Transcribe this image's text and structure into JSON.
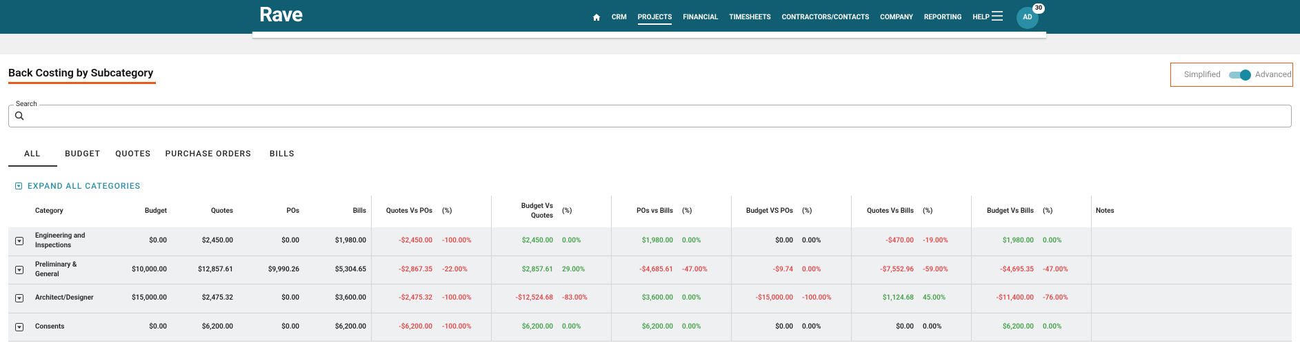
{
  "nav": {
    "brand": "Rave",
    "items": [
      "CRM",
      "PROJECTS",
      "FINANCIAL",
      "TIMESHEETS",
      "CONTRACTORS/CONTACTS",
      "COMPANY",
      "REPORTING",
      "HELP"
    ],
    "avatar": "AD",
    "badge": "30"
  },
  "page": {
    "title": "Back Costing by Subcategory",
    "toggle": {
      "left": "Simplified",
      "right": "Advanced"
    },
    "search_label": "Search",
    "tabs": [
      "ALL",
      "BUDGET",
      "QUOTES",
      "PURCHASE ORDERS",
      "BILLS"
    ],
    "expand": "EXPAND ALL CATEGORIES"
  },
  "table": {
    "columns": [
      "Category",
      "Budget",
      "Quotes",
      "POs",
      "Bills",
      "Quotes Vs POs",
      "(%)",
      "Budget Vs Quotes",
      "(%)",
      "POs vs Bills",
      "(%)",
      "Budget VS POs",
      "(%)",
      "Quotes Vs Bills",
      "(%)",
      "Budget Vs Bills",
      "(%)",
      "Notes"
    ],
    "rows": [
      [
        "Engineering and Inspections",
        "$0.00",
        "$2,450.00",
        "$0.00",
        "$1,980.00",
        "-$2,450.00",
        "-100.00%",
        "$2,450.00",
        "0.00%",
        "$1,980.00",
        "0.00%",
        "$0.00",
        "0.00%",
        "-$470.00",
        "-19.00%",
        "$1,980.00",
        "0.00%"
      ],
      [
        "Preliminary & General",
        "$10,000.00",
        "$12,857.61",
        "$9,990.26",
        "$5,304.65",
        "-$2,867.35",
        "-22.00%",
        "$2,857.61",
        "29.00%",
        "-$4,685.61",
        "-47.00%",
        "-$9.74",
        "0.00%",
        "-$7,552.96",
        "-59.00%",
        "-$4,695.35",
        "-47.00%"
      ],
      [
        "Architect/Designer",
        "$15,000.00",
        "$2,475.32",
        "$0.00",
        "$3,600.00",
        "-$2,475.32",
        "-100.00%",
        "-$12,524.68",
        "-83.00%",
        "$3,600.00",
        "0.00%",
        "-$15,000.00",
        "-100.00%",
        "$1,124.68",
        "45.00%",
        "-$11,400.00",
        "-76.00%"
      ],
      [
        "Consents",
        "$0.00",
        "$6,200.00",
        "$0.00",
        "$6,200.00",
        "-$6,200.00",
        "-100.00%",
        "$6,200.00",
        "0.00%",
        "$6,200.00",
        "0.00%",
        "$0.00",
        "0.00%",
        "$0.00",
        "0.00%",
        "$6,200.00",
        "0.00%"
      ]
    ]
  }
}
